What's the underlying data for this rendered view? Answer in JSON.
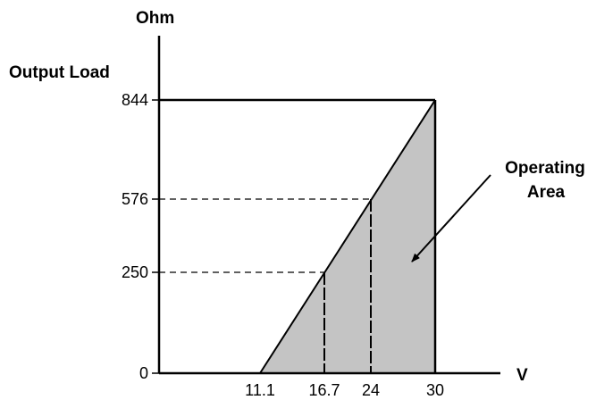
{
  "chart_data": {
    "type": "area",
    "title": "",
    "y_unit": "Ohm",
    "y_title": "Output Load",
    "x_unit": "V",
    "x_ticks": [
      "11.1",
      "16.7",
      "24",
      "30"
    ],
    "y_ticks": [
      "0",
      "250",
      "576",
      "844"
    ],
    "xlim": [
      0,
      30
    ],
    "ylim": [
      0,
      844
    ],
    "boundary": [
      {
        "x": 11.1,
        "y": 0
      },
      {
        "x": 30,
        "y": 844
      }
    ],
    "reference_points": [
      {
        "x": 16.7,
        "y": 250
      },
      {
        "x": 24,
        "y": 576
      }
    ],
    "region": {
      "label_line1": "Operating",
      "label_line2": "Area",
      "fill_color": "#c4c4c4"
    },
    "grid": false
  }
}
